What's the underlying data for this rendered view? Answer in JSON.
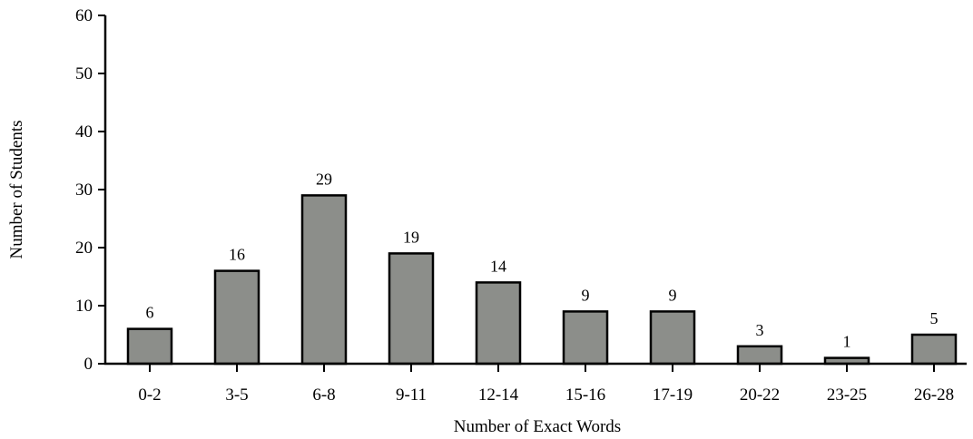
{
  "chart_data": {
    "type": "bar",
    "title": "",
    "xlabel": "Number of Exact Words",
    "ylabel": "Number of Students",
    "categories": [
      "0-2",
      "3-5",
      "6-8",
      "9-11",
      "12-14",
      "15-16",
      "17-19",
      "20-22",
      "23-25",
      "26-28"
    ],
    "values": [
      6,
      16,
      29,
      19,
      14,
      9,
      9,
      3,
      1,
      5
    ],
    "ylim": [
      0,
      60
    ],
    "yticks": [
      0,
      10,
      20,
      30,
      40,
      50,
      60
    ],
    "grid": false,
    "legend": "none",
    "bar_color": "#8c8e8a",
    "bar_edge_color": "#000000"
  }
}
